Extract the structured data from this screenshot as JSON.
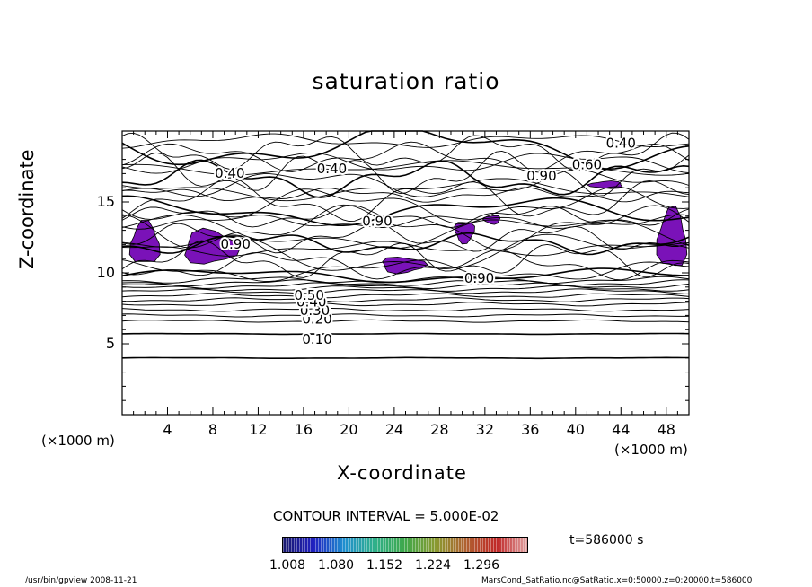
{
  "chart_data": {
    "type": "contour",
    "title": "saturation ratio",
    "xlabel": "X-coordinate",
    "ylabel": "Z-coordinate",
    "x_unit": "(×1000 m)",
    "x_ticks": [
      "4",
      "8",
      "12",
      "16",
      "20",
      "24",
      "28",
      "32",
      "36",
      "40",
      "44",
      "48"
    ],
    "y_ticks": [
      "5",
      "10",
      "15"
    ],
    "xlim": [
      0,
      50
    ],
    "ylim": [
      0,
      20
    ],
    "contour_interval_label": "CONTOUR INTERVAL = 5.000E-02",
    "contour_labels": [
      {
        "text": "0.10",
        "x": 17.2,
        "y": 5.3
      },
      {
        "text": "0.20",
        "x": 17.2,
        "y": 6.7
      },
      {
        "text": "0.30",
        "x": 17.0,
        "y": 7.3
      },
      {
        "text": "0.40",
        "x": 16.7,
        "y": 7.9
      },
      {
        "text": "0.50",
        "x": 16.5,
        "y": 8.4
      },
      {
        "text": "0.40",
        "x": 9.5,
        "y": 17.0
      },
      {
        "text": "0.40",
        "x": 18.5,
        "y": 17.3
      },
      {
        "text": "0.40",
        "x": 44.0,
        "y": 19.1
      },
      {
        "text": "0.90",
        "x": 37.0,
        "y": 16.8
      },
      {
        "text": "0.60",
        "x": 41.0,
        "y": 17.6
      },
      {
        "text": "0.90",
        "x": 22.5,
        "y": 13.6
      },
      {
        "text": "0.90",
        "x": 31.5,
        "y": 9.6
      },
      {
        "text": "0.90",
        "x": 10.0,
        "y": 12.0
      }
    ],
    "shaded_regions_ge_1_008": [
      {
        "x": [
          0.5,
          3.5
        ],
        "y": [
          10.3,
          13.8
        ]
      },
      {
        "x": [
          5.0,
          10.5
        ],
        "y": [
          10.4,
          13.2
        ]
      },
      {
        "x": [
          22.5,
          27.0
        ],
        "y": [
          9.9,
          11.2
        ]
      },
      {
        "x": [
          29.2,
          31.2
        ],
        "y": [
          12.0,
          13.8
        ]
      },
      {
        "x": [
          31.8,
          33.5
        ],
        "y": [
          13.4,
          14.1
        ]
      },
      {
        "x": [
          41.0,
          44.5
        ],
        "y": [
          15.9,
          16.5
        ]
      },
      {
        "x": [
          47.0,
          50.0
        ],
        "y": [
          9.9,
          14.8
        ]
      }
    ],
    "colorbar": {
      "labels": [
        "1.008",
        "1.080",
        "1.152",
        "1.224",
        "1.296"
      ],
      "colors": [
        "#1a1a6e",
        "#2020c0",
        "#1f8fd0",
        "#2fb08a",
        "#3fa84a",
        "#8a9a30",
        "#b06030",
        "#c02828",
        "#e0a0a0"
      ]
    },
    "time_label": "t=586000 s",
    "shade_color": "#7a12b8"
  },
  "footer": {
    "left": "/usr/bin/gpview   2008-11-21",
    "right": "MarsCond_SatRatio.nc@SatRatio,x=0:50000,z=0:20000,t=586000"
  }
}
